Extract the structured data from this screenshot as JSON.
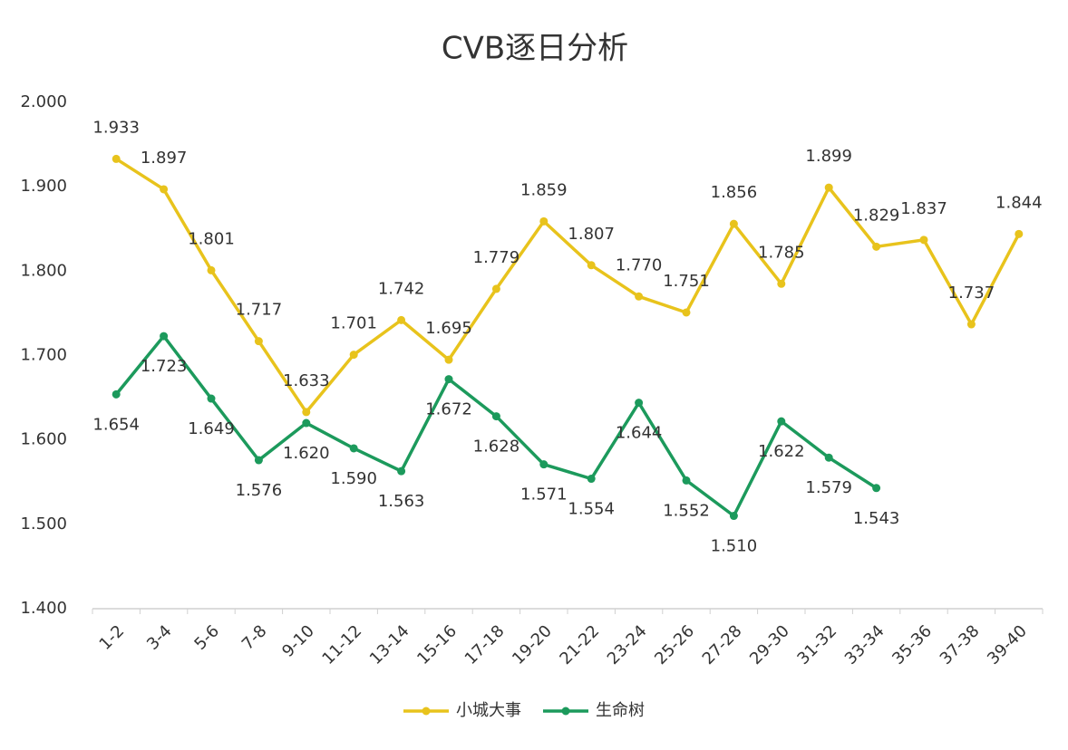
{
  "chart_data": {
    "type": "line",
    "title": "CVB逐日分析",
    "categories": [
      "1-2",
      "3-4",
      "5-6",
      "7-8",
      "9-10",
      "11-12",
      "13-14",
      "15-16",
      "17-18",
      "19-20",
      "21-22",
      "23-24",
      "25-26",
      "27-28",
      "29-30",
      "31-32",
      "33-34",
      "35-36",
      "37-38",
      "39-40"
    ],
    "series": [
      {
        "name": "小城大事",
        "color": "#e8c31c",
        "values": [
          1.933,
          1.897,
          1.801,
          1.717,
          1.633,
          1.701,
          1.742,
          1.695,
          1.779,
          1.859,
          1.807,
          1.77,
          1.751,
          1.856,
          1.785,
          1.899,
          1.829,
          1.837,
          1.737,
          1.844
        ],
        "value_labels": [
          "1.933",
          "1.897",
          "1.801",
          "1.717",
          "1.633",
          "1.701",
          "1.742",
          "1.695",
          "1.779",
          "1.859",
          "1.807",
          "1.770",
          "1.751",
          "1.856",
          "1.785",
          "1.899",
          "1.829",
          "1.837",
          "1.737",
          "1.844"
        ]
      },
      {
        "name": "生命树",
        "color": "#1c9a5c",
        "values": [
          1.654,
          1.723,
          1.649,
          1.576,
          1.62,
          1.59,
          1.563,
          1.672,
          1.628,
          1.571,
          1.554,
          1.644,
          1.552,
          1.51,
          1.622,
          1.579,
          1.543,
          null,
          null,
          null
        ],
        "value_labels": [
          "1.654",
          "1.723",
          "1.649",
          "1.576",
          "1.620",
          "1.590",
          "1.563",
          "1.672",
          "1.628",
          "1.571",
          "1.554",
          "1.644",
          "1.552",
          "1.510",
          "1.622",
          "1.579",
          "1.543",
          null,
          null,
          null
        ]
      }
    ],
    "ylim": [
      1.4,
      2.0
    ],
    "yticks": [
      {
        "value": 1.4,
        "label": "1.400"
      },
      {
        "value": 1.5,
        "label": "1.500"
      },
      {
        "value": 1.6,
        "label": "1.600"
      },
      {
        "value": 1.7,
        "label": "1.700"
      },
      {
        "value": 1.8,
        "label": "1.800"
      },
      {
        "value": 1.9,
        "label": "1.900"
      },
      {
        "value": 2.0,
        "label": "2.000"
      }
    ],
    "grid": false,
    "legend": "bottom"
  }
}
